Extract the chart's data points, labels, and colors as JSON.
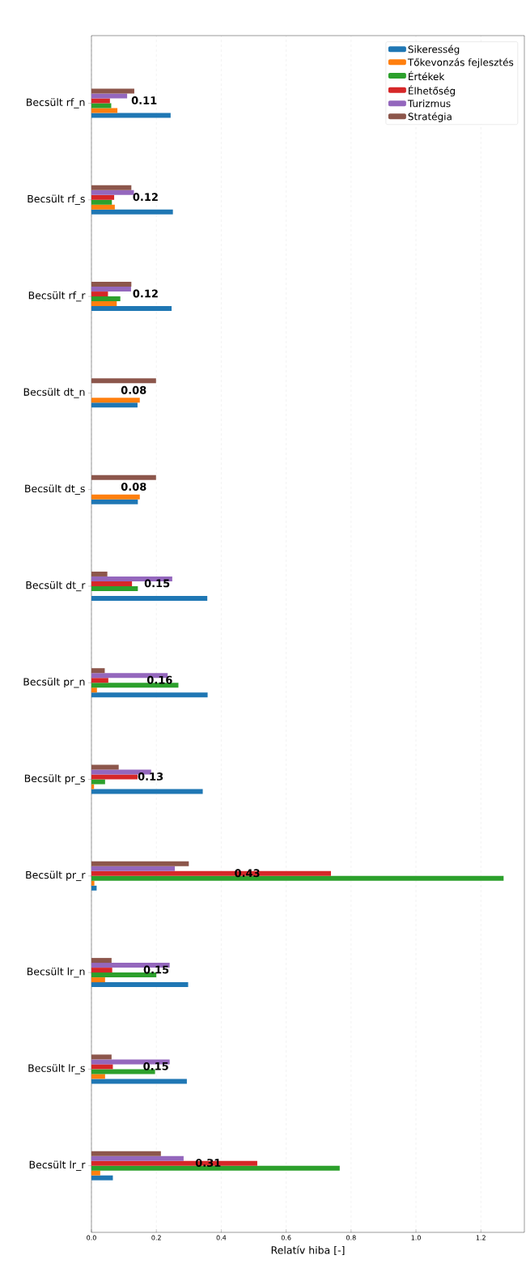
{
  "chart_data": {
    "type": "bar",
    "orientation": "horizontal",
    "xlabel": "Relatív hiba [-]",
    "categories": [
      "Becsült rf_n",
      "Becsült rf_s",
      "Becsült rf_r",
      "Becsült dt_n",
      "Becsült dt_s",
      "Becsült dt_r",
      "Becsült pr_n",
      "Becsült pr_s",
      "Becsült pr_r",
      "Becsült lr_n",
      "Becsült lr_s",
      "Becsült lr_r"
    ],
    "series": [
      {
        "name": "Sikeresség",
        "color": "#1f77b4",
        "values": [
          0.244,
          0.251,
          0.247,
          0.142,
          0.143,
          0.357,
          0.358,
          0.343,
          0.016,
          0.298,
          0.294,
          0.066
        ]
      },
      {
        "name": "Tőkevonzás fejlesztés",
        "color": "#ff7f0e",
        "values": [
          0.08,
          0.072,
          0.078,
          0.149,
          0.149,
          null,
          0.017,
          0.008,
          0.009,
          0.042,
          0.042,
          0.027
        ]
      },
      {
        "name": "Értékek",
        "color": "#2ca02c",
        "values": [
          0.061,
          0.063,
          0.089,
          null,
          null,
          0.143,
          0.268,
          0.042,
          1.27,
          0.2,
          0.196,
          0.765
        ]
      },
      {
        "name": "Élhetőség",
        "color": "#d62728",
        "values": [
          0.057,
          0.07,
          0.051,
          null,
          null,
          0.125,
          0.052,
          0.142,
          0.738,
          0.064,
          0.066,
          0.511
        ]
      },
      {
        "name": "Turizmus",
        "color": "#9467bd",
        "values": [
          0.11,
          0.131,
          0.122,
          null,
          null,
          0.249,
          0.235,
          0.184,
          0.257,
          0.241,
          0.241,
          0.284
        ]
      },
      {
        "name": "Stratégia",
        "color": "#8c564b",
        "values": [
          0.132,
          0.123,
          0.123,
          0.199,
          0.199,
          0.049,
          0.041,
          0.084,
          0.3,
          0.062,
          0.062,
          0.214
        ]
      }
    ],
    "xlim": [
      0,
      1.334
    ],
    "xticks": [
      {
        "value": 0,
        "label": "0.0"
      },
      {
        "value": 0.2,
        "label": "0.2"
      },
      {
        "value": 0.4,
        "label": "0.4"
      },
      {
        "value": 0.6,
        "label": "0.6"
      },
      {
        "value": 0.8,
        "label": "0.8"
      },
      {
        "value": 1.0,
        "label": "1.0"
      },
      {
        "value": 1.2,
        "label": "1.2"
      }
    ],
    "grid": "x",
    "legend": "top right",
    "annotations": [
      "0.11",
      "0.12",
      "0.12",
      "0.08",
      "0.08",
      "0.15",
      "0.16",
      "0.13",
      "0.43",
      "0.15",
      "0.15",
      "0.31"
    ]
  }
}
